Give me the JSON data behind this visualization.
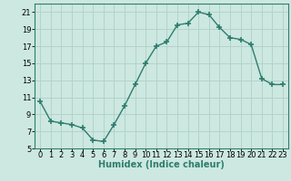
{
  "xlabel": "Humidex (Indice chaleur)",
  "ylabel": "",
  "x_values": [
    0,
    1,
    2,
    3,
    4,
    5,
    6,
    7,
    8,
    9,
    10,
    11,
    12,
    13,
    14,
    15,
    16,
    17,
    18,
    19,
    20,
    21,
    22,
    23
  ],
  "y_values": [
    10.5,
    8.2,
    8.0,
    7.8,
    7.4,
    6.0,
    5.8,
    7.8,
    10.0,
    12.5,
    15.0,
    17.0,
    17.5,
    19.5,
    19.7,
    21.0,
    20.7,
    19.2,
    18.0,
    17.8,
    17.2,
    13.2,
    12.5,
    12.5
  ],
  "line_color": "#2e7d6e",
  "marker": "+",
  "markersize": 4,
  "markeredgewidth": 1.2,
  "linewidth": 1.0,
  "linestyle": "-",
  "background_color": "#cce8e0",
  "grid_color": "#b0d0c8",
  "ylim": [
    5,
    22
  ],
  "xlim": [
    -0.5,
    23.5
  ],
  "yticks": [
    5,
    7,
    9,
    11,
    13,
    15,
    17,
    19,
    21
  ],
  "xticks": [
    0,
    1,
    2,
    3,
    4,
    5,
    6,
    7,
    8,
    9,
    10,
    11,
    12,
    13,
    14,
    15,
    16,
    17,
    18,
    19,
    20,
    21,
    22,
    23
  ],
  "xlabel_fontsize": 7,
  "tick_fontsize": 6
}
